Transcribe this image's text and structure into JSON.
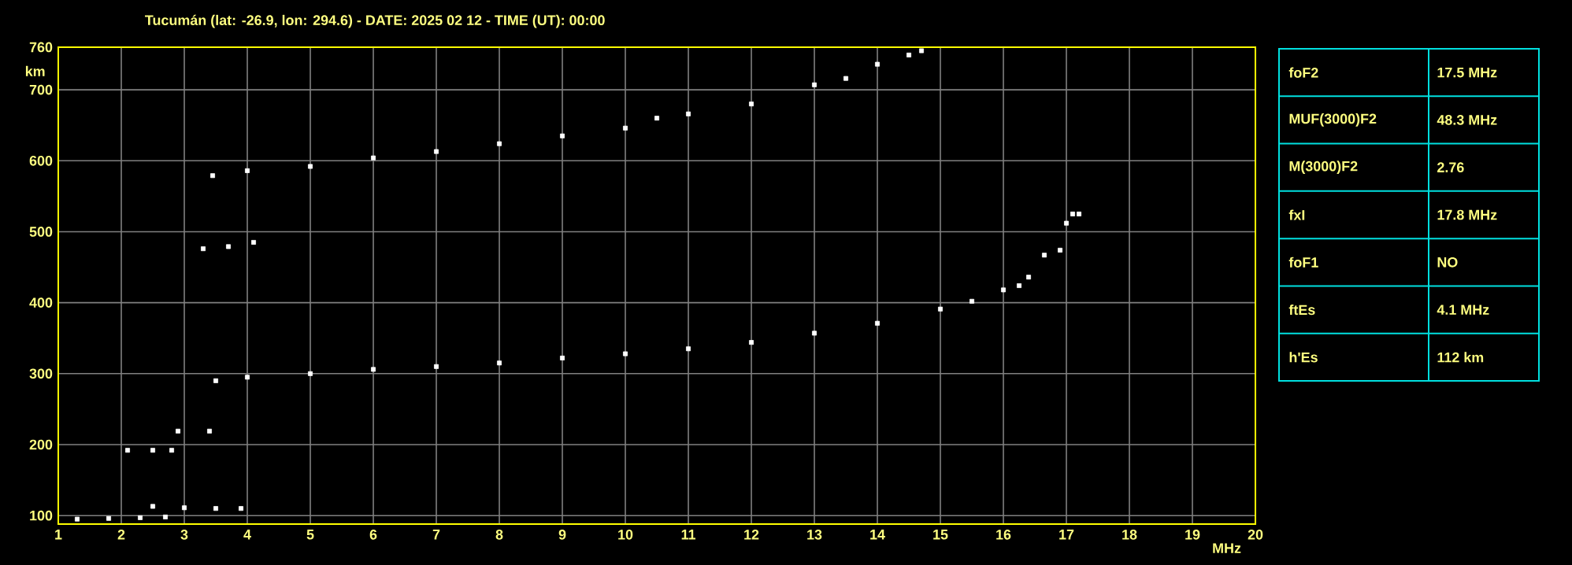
{
  "chart_data": [
    {
      "type": "scatter",
      "title": "Tucumán (lat: -26.9, lon: 294.6) - DATE: 2025 02 12 - TIME (UT): 00:00",
      "xlabel": "MHz",
      "ylabel": "km",
      "xlim": [
        1,
        20
      ],
      "ylim": [
        88,
        760
      ],
      "xticks": [
        1,
        2,
        3,
        4,
        5,
        6,
        7,
        8,
        9,
        10,
        11,
        12,
        13,
        14,
        15,
        16,
        17,
        18,
        19,
        20
      ],
      "yticks": [
        100,
        200,
        300,
        400,
        500,
        600,
        700,
        760
      ],
      "grid": true,
      "marker": "square",
      "series": [
        {
          "color": "#ffffff",
          "x": [
            3.5,
            4,
            5,
            6,
            7,
            8,
            9,
            10,
            11,
            12,
            13,
            14,
            15,
            15.5,
            16,
            16.25,
            16.65,
            17.0,
            17.1,
            16.4,
            16.9,
            17.2
          ],
          "values": [
            290,
            295,
            300,
            306,
            310,
            315,
            322,
            328,
            335,
            344,
            357,
            371,
            391,
            402,
            418,
            424,
            467,
            512,
            525,
            436,
            474,
            525
          ]
        },
        {
          "color": "#ffffff",
          "x": [
            3.45,
            4,
            5,
            6,
            7,
            8,
            9,
            10,
            10.5,
            11,
            12,
            13,
            13.5,
            14,
            14.5,
            14.7
          ],
          "values": [
            579,
            586,
            592,
            604,
            613,
            624,
            635,
            646,
            660,
            666,
            680,
            707,
            716,
            736,
            749,
            755
          ]
        },
        {
          "color": "#ffffff",
          "x": [
            3.3,
            3.7,
            4.1
          ],
          "values": [
            476,
            479,
            485
          ]
        },
        {
          "color": "#ffffff",
          "x": [
            1.3,
            1.8,
            2.3,
            2.7,
            2.5,
            3,
            3.5,
            3.9
          ],
          "values": [
            95,
            96,
            97,
            98,
            113,
            111,
            110,
            110
          ]
        },
        {
          "color": "#ffffff",
          "x": [
            2.1,
            2.5,
            2.8,
            2.9,
            3.4
          ],
          "values": [
            192,
            192,
            192,
            219,
            219
          ]
        }
      ]
    },
    {
      "type": "other",
      "categories": [
        "foF2",
        "MUF(3000)F2",
        "M(3000)F2",
        "fxI",
        "foF1",
        "ftEs",
        "h'Es"
      ],
      "annotations": [
        "17.5 MHz",
        "48.3 MHz",
        "2.76",
        "17.8 MHz",
        "NO",
        "4.1 MHz",
        "112 km"
      ]
    }
  ]
}
